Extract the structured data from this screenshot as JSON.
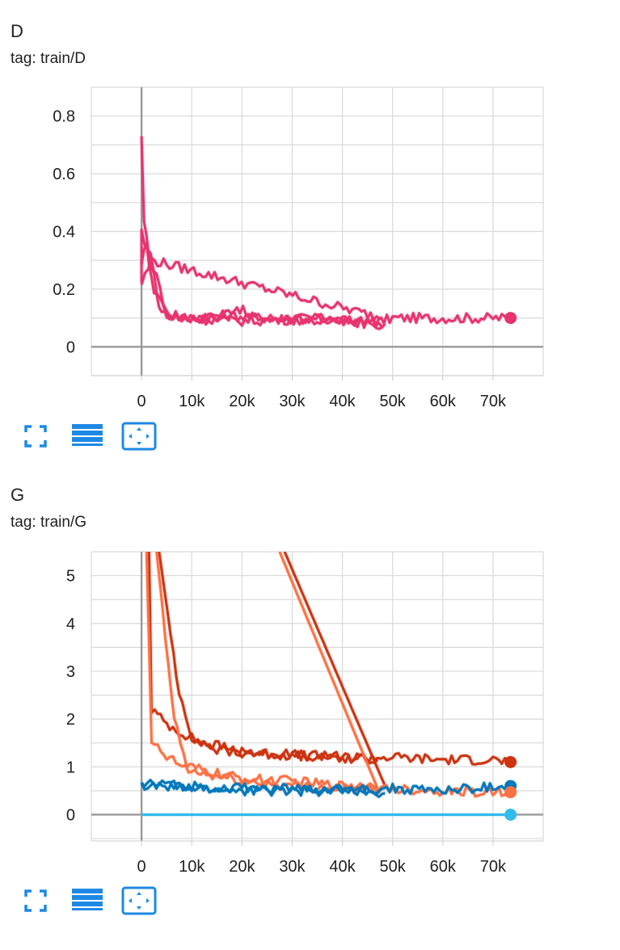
{
  "cards": [
    {
      "title": "D",
      "tag": "tag: train/D",
      "chart_data": {
        "type": "line",
        "title": "D",
        "xlabel": "",
        "ylabel": "",
        "xlim": [
          -10000,
          80000
        ],
        "ylim": [
          -0.1,
          0.9
        ],
        "xticks": [
          0,
          10000,
          20000,
          30000,
          40000,
          50000,
          60000,
          70000
        ],
        "xtick_labels": [
          "0",
          "10k",
          "20k",
          "30k",
          "40k",
          "50k",
          "60k",
          "70k"
        ],
        "yticks": [
          0,
          0.2,
          0.4,
          0.6,
          0.8
        ],
        "ytick_labels": [
          "0",
          "0.2",
          "0.4",
          "0.6",
          "0.8"
        ],
        "grid": true,
        "legend": "none",
        "series": [
          {
            "color": "#e8336e",
            "values": [
              [
                0,
                0.73
              ],
              [
                500,
                0.42
              ],
              [
                1500,
                0.32
              ],
              [
                3000,
                0.2
              ],
              [
                5000,
                0.12
              ],
              [
                8000,
                0.1
              ],
              [
                15000,
                0.1
              ],
              [
                19000,
                0.14
              ],
              [
                22000,
                0.1
              ],
              [
                30000,
                0.1
              ],
              [
                40000,
                0.09
              ],
              [
                46000,
                0.08
              ],
              [
                50000,
                0.1
              ],
              [
                60000,
                0.1
              ],
              [
                70000,
                0.1
              ],
              [
                73500,
                0.1
              ]
            ]
          },
          {
            "color": "#e8336e",
            "values": [
              [
                0,
                0.3
              ],
              [
                1000,
                0.35
              ],
              [
                2500,
                0.2
              ],
              [
                4000,
                0.12
              ],
              [
                8000,
                0.1
              ],
              [
                15000,
                0.11
              ],
              [
                25000,
                0.1
              ],
              [
                35000,
                0.09
              ],
              [
                42000,
                0.09
              ],
              [
                48500,
                0.08
              ]
            ]
          },
          {
            "color": "#e8336e",
            "values": [
              [
                0,
                0.22
              ],
              [
                2000,
                0.3
              ],
              [
                48000,
                0.1
              ]
            ]
          },
          {
            "color": "#e8336e",
            "values": [
              [
                0,
                0.22
              ],
              [
                0,
                0.4
              ],
              [
                3000,
                0.25
              ],
              [
                5000,
                0.1
              ],
              [
                20000,
                0.09
              ],
              [
                40000,
                0.1
              ],
              [
                48000,
                0.07
              ]
            ]
          }
        ],
        "end_marker": {
          "x": 73500,
          "y": 0.1,
          "color": "#e8336e"
        }
      }
    },
    {
      "title": "G",
      "tag": "tag: train/G",
      "chart_data": {
        "type": "line",
        "title": "G",
        "xlabel": "",
        "ylabel": "",
        "xlim": [
          -10000,
          80000
        ],
        "ylim": [
          -0.55,
          5.5
        ],
        "xticks": [
          0,
          10000,
          20000,
          30000,
          40000,
          50000,
          60000,
          70000
        ],
        "xtick_labels": [
          "0",
          "10k",
          "20k",
          "30k",
          "40k",
          "50k",
          "60k",
          "70k"
        ],
        "yticks": [
          0,
          1,
          2,
          3,
          4,
          5
        ],
        "ytick_labels": [
          "0",
          "1",
          "2",
          "3",
          "4",
          "5"
        ],
        "grid": true,
        "legend": "none",
        "series": [
          {
            "color": "#cc3311",
            "values": [
              [
                1500,
                5.5
              ],
              [
                2000,
                2.2
              ],
              [
                5000,
                1.9
              ],
              [
                10000,
                1.6
              ],
              [
                15000,
                1.35
              ],
              [
                20000,
                1.3
              ],
              [
                30000,
                1.25
              ],
              [
                40000,
                1.2
              ],
              [
                50000,
                1.2
              ],
              [
                60000,
                1.15
              ],
              [
                70000,
                1.15
              ],
              [
                73500,
                1.1
              ]
            ]
          },
          {
            "color": "#cc3311",
            "values": [
              [
                3500,
                5.5
              ],
              [
                7500,
                2.5
              ],
              [
                10000,
                1.6
              ],
              [
                20000,
                1.3
              ],
              [
                30000,
                1.25
              ],
              [
                40000,
                1.2
              ],
              [
                47000,
                1.15
              ]
            ]
          },
          {
            "color": "#cc3311",
            "values": [
              [
                28500,
                5.5
              ],
              [
                48500,
                0.6
              ]
            ]
          },
          {
            "color": "#ff7043",
            "values": [
              [
                1000,
                5.5
              ],
              [
                2000,
                1.5
              ],
              [
                5000,
                1.2
              ],
              [
                10000,
                0.9
              ],
              [
                20000,
                0.7
              ],
              [
                30000,
                0.6
              ],
              [
                40000,
                0.55
              ],
              [
                50000,
                0.55
              ],
              [
                60000,
                0.5
              ],
              [
                73500,
                0.47
              ]
            ]
          },
          {
            "color": "#ff7043",
            "values": [
              [
                3000,
                5.5
              ],
              [
                6500,
                2.0
              ],
              [
                9000,
                1.0
              ],
              [
                20000,
                0.75
              ],
              [
                30000,
                0.7
              ],
              [
                40000,
                0.6
              ],
              [
                48000,
                0.6
              ]
            ]
          },
          {
            "color": "#ff7043",
            "values": [
              [
                27500,
                5.5
              ],
              [
                47000,
                0.55
              ]
            ]
          },
          {
            "color": "#0077bb",
            "values": [
              [
                0,
                0.65
              ],
              [
                10000,
                0.6
              ],
              [
                20000,
                0.55
              ],
              [
                30000,
                0.55
              ],
              [
                40000,
                0.55
              ],
              [
                48500,
                0.45
              ]
            ]
          },
          {
            "color": "#0077bb",
            "values": [
              [
                0,
                0.6
              ],
              [
                10000,
                0.55
              ],
              [
                20000,
                0.5
              ],
              [
                30000,
                0.5
              ],
              [
                40000,
                0.5
              ],
              [
                50000,
                0.55
              ],
              [
                60000,
                0.5
              ],
              [
                73500,
                0.6
              ]
            ]
          },
          {
            "color": "#33bbee",
            "values": [
              [
                0,
                0.0
              ],
              [
                73500,
                0.0
              ]
            ]
          }
        ],
        "end_markers": [
          {
            "x": 73500,
            "y": 1.1,
            "color": "#cc3311"
          },
          {
            "x": 73500,
            "y": 0.6,
            "color": "#0077bb"
          },
          {
            "x": 73500,
            "y": 0.47,
            "color": "#ff7043"
          },
          {
            "x": 73500,
            "y": 0.0,
            "color": "#33bbee"
          }
        ]
      }
    }
  ],
  "toolbar": {
    "icons": [
      "fullscreen-icon",
      "data-table-icon",
      "fit-domain-icon"
    ],
    "icon_color": "#1e88e5"
  }
}
